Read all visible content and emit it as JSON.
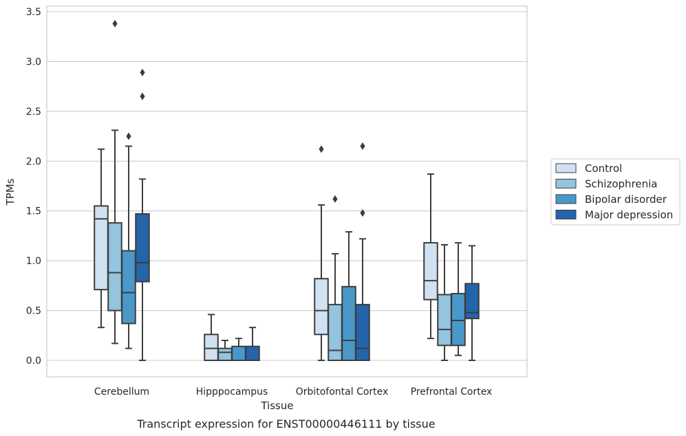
{
  "chart_data": {
    "type": "box",
    "xlabel": "Tissue",
    "ylabel": "TPMs",
    "caption": "Transcript expression for ENST00000446111 by tissue",
    "ylim": [
      -0.16,
      3.56
    ],
    "yticks": [
      "0.0",
      "0.5",
      "1.0",
      "1.5",
      "2.0",
      "2.5",
      "3.0",
      "3.5"
    ],
    "grid": true,
    "legend_position": "right",
    "categories": [
      "Cerebellum",
      "Hipppocampus",
      "Orbitofontal Cortex",
      "Prefrontal Cortex"
    ],
    "series": [
      {
        "name": "Control",
        "color": "#d0e1f2",
        "boxes": [
          {
            "whisker_low": 0.33,
            "q1": 0.71,
            "median": 1.42,
            "q3": 1.55,
            "whisker_high": 2.12,
            "outliers": []
          },
          {
            "whisker_low": 0.0,
            "q1": 0.0,
            "median": 0.12,
            "q3": 0.26,
            "whisker_high": 0.46,
            "outliers": []
          },
          {
            "whisker_low": 0.0,
            "q1": 0.26,
            "median": 0.5,
            "q3": 0.82,
            "whisker_high": 1.56,
            "outliers": [
              2.12
            ]
          },
          {
            "whisker_low": 0.22,
            "q1": 0.61,
            "median": 0.8,
            "q3": 1.18,
            "whisker_high": 1.87,
            "outliers": []
          }
        ]
      },
      {
        "name": "Schizophrenia",
        "color": "#94c4df",
        "boxes": [
          {
            "whisker_low": 0.17,
            "q1": 0.5,
            "median": 0.88,
            "q3": 1.38,
            "whisker_high": 2.31,
            "outliers": [
              3.38
            ]
          },
          {
            "whisker_low": 0.0,
            "q1": 0.0,
            "median": 0.08,
            "q3": 0.12,
            "whisker_high": 0.2,
            "outliers": []
          },
          {
            "whisker_low": 0.0,
            "q1": 0.0,
            "median": 0.1,
            "q3": 0.56,
            "whisker_high": 1.07,
            "outliers": [
              1.62
            ]
          },
          {
            "whisker_low": 0.0,
            "q1": 0.15,
            "median": 0.31,
            "q3": 0.66,
            "whisker_high": 1.16,
            "outliers": []
          }
        ]
      },
      {
        "name": "Bipolar disorder",
        "color": "#4a98c9",
        "boxes": [
          {
            "whisker_low": 0.12,
            "q1": 0.37,
            "median": 0.68,
            "q3": 1.1,
            "whisker_high": 2.15,
            "outliers": [
              2.25
            ]
          },
          {
            "whisker_low": 0.0,
            "q1": 0.0,
            "median": 0.0,
            "q3": 0.14,
            "whisker_high": 0.22,
            "outliers": []
          },
          {
            "whisker_low": 0.0,
            "q1": 0.0,
            "median": 0.2,
            "q3": 0.74,
            "whisker_high": 1.29,
            "outliers": []
          },
          {
            "whisker_low": 0.05,
            "q1": 0.15,
            "median": 0.4,
            "q3": 0.67,
            "whisker_high": 1.18,
            "outliers": []
          }
        ]
      },
      {
        "name": "Major depression",
        "color": "#2364aa",
        "boxes": [
          {
            "whisker_low": 0.0,
            "q1": 0.79,
            "median": 0.98,
            "q3": 1.47,
            "whisker_high": 1.82,
            "outliers": [
              2.65,
              2.89
            ]
          },
          {
            "whisker_low": 0.0,
            "q1": 0.0,
            "median": 0.0,
            "q3": 0.14,
            "whisker_high": 0.33,
            "outliers": []
          },
          {
            "whisker_low": 0.0,
            "q1": 0.0,
            "median": 0.12,
            "q3": 0.56,
            "whisker_high": 1.22,
            "outliers": [
              1.48,
              2.15
            ]
          },
          {
            "whisker_low": 0.0,
            "q1": 0.42,
            "median": 0.48,
            "q3": 0.77,
            "whisker_high": 1.15,
            "outliers": []
          }
        ]
      }
    ]
  }
}
